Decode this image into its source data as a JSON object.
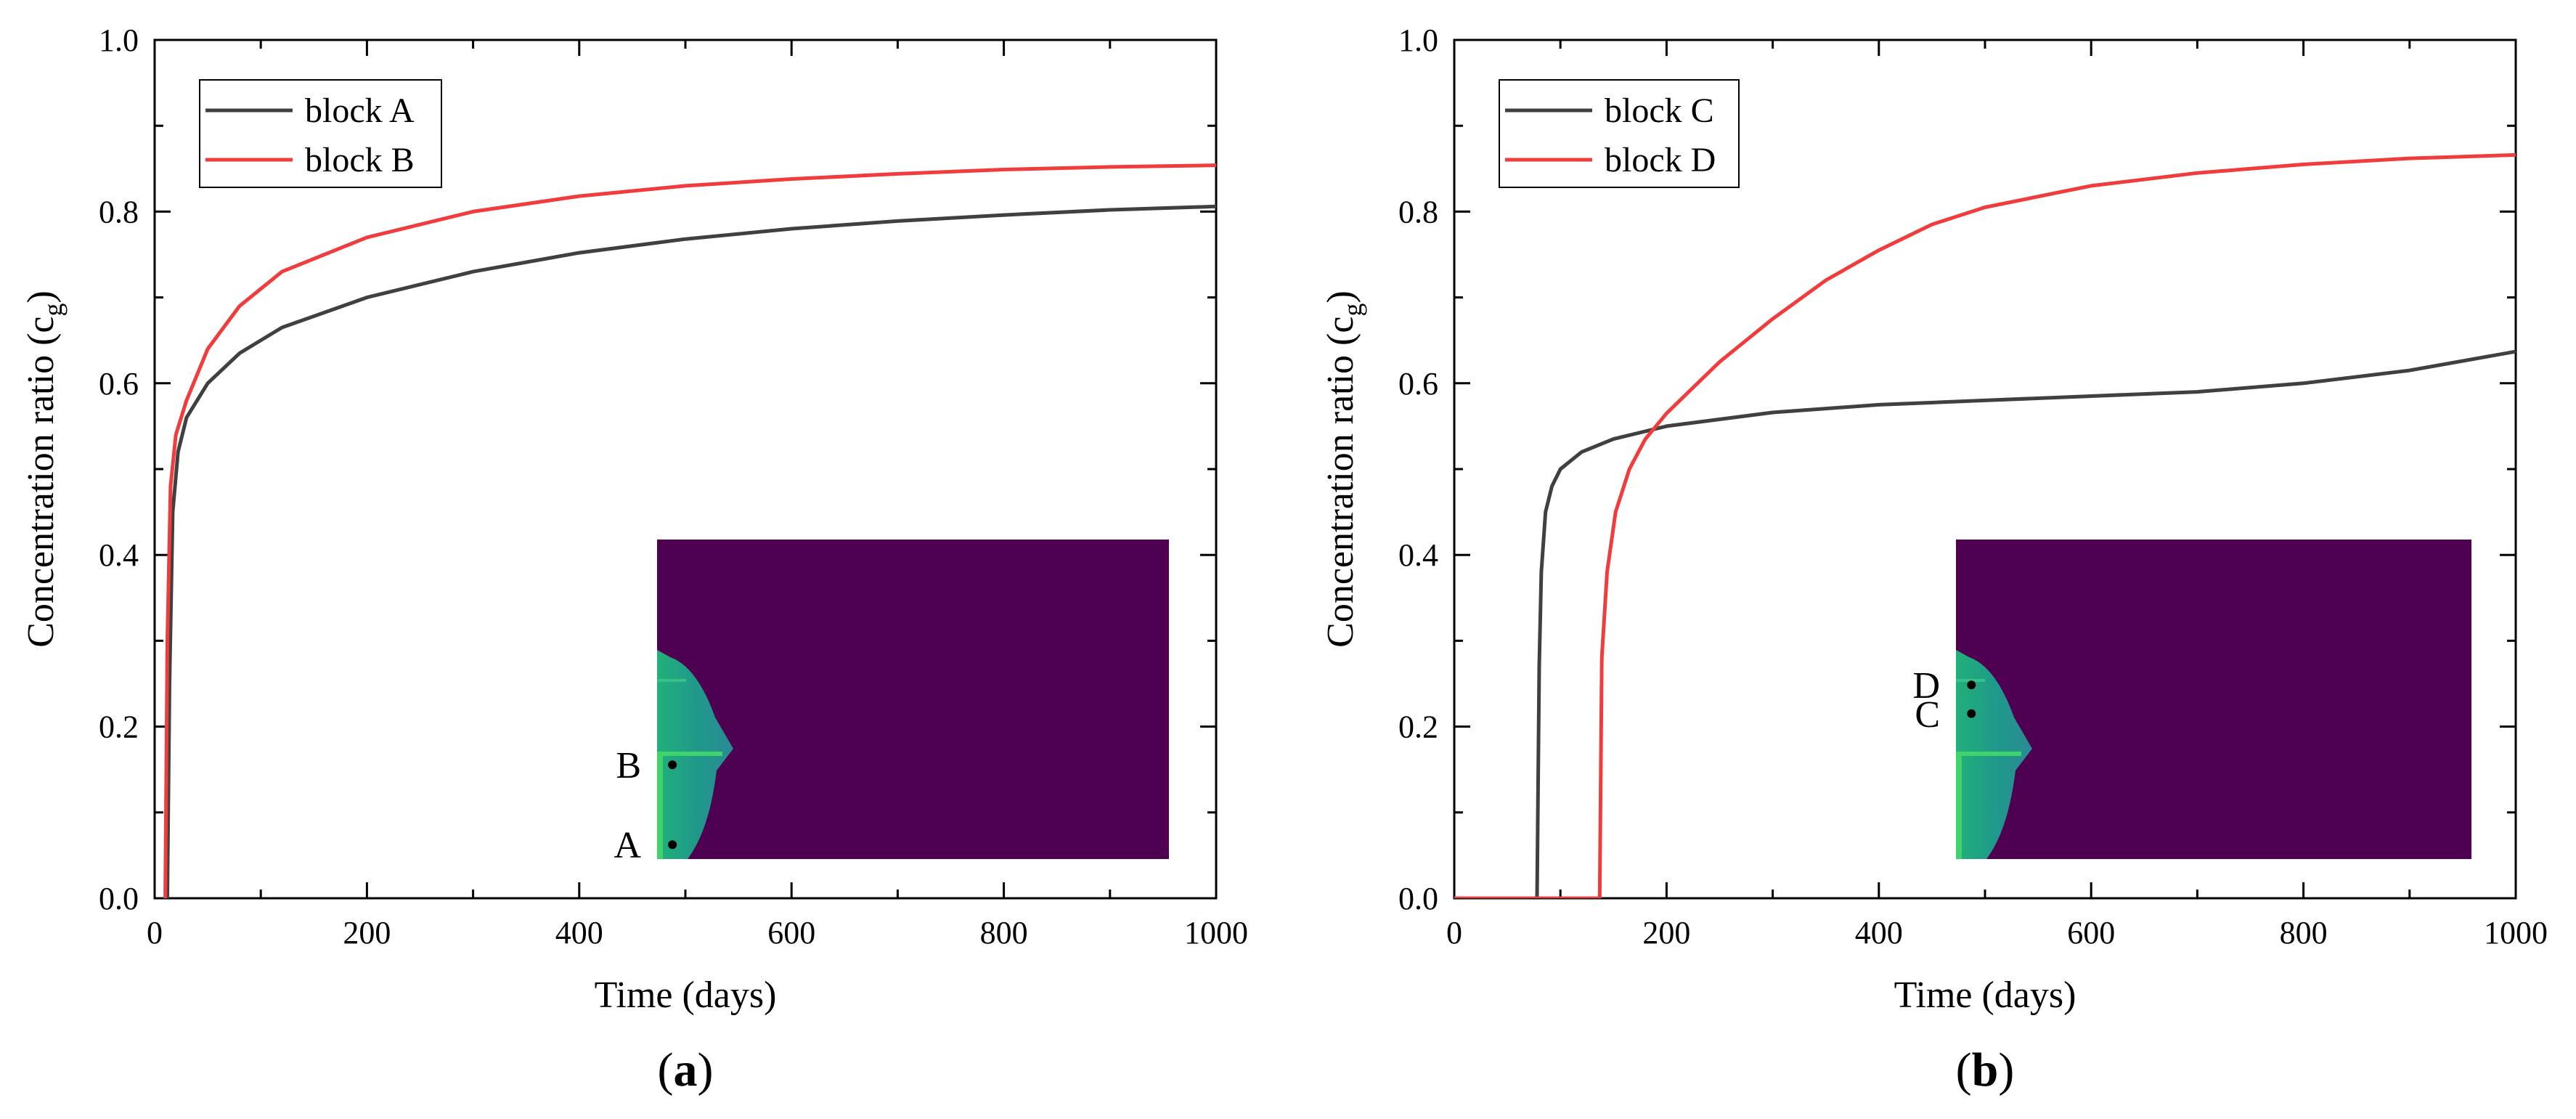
{
  "colors": {
    "series_dark": "#404040",
    "series_red": "#f03c3c",
    "inset_bg": "#4e0150",
    "inset_teal": "#1f9a8a",
    "inset_green": "#3fd36b"
  },
  "chart_data": [
    {
      "type": "line",
      "panel_label": "a",
      "xlabel": "Time (days)",
      "ylabel": "Concentration ratio (c",
      "ylabel_sub": "g",
      "ylabel_close": ")",
      "xlim": [
        0,
        1000
      ],
      "ylim": [
        0,
        1.0
      ],
      "xticks": [
        0,
        200,
        400,
        600,
        800,
        1000
      ],
      "yticks": [
        0.0,
        0.2,
        0.4,
        0.6,
        0.8,
        1.0
      ],
      "xtick_labels": [
        "0",
        "200",
        "400",
        "600",
        "800",
        "1000"
      ],
      "ytick_labels": [
        "0.0",
        "0.2",
        "0.4",
        "0.6",
        "0.8",
        "1.0"
      ],
      "legend_position": "top-left",
      "series": [
        {
          "name": "block A",
          "color": "#404040",
          "points": [
            [
              12,
              0
            ],
            [
              14,
              0.25
            ],
            [
              17,
              0.45
            ],
            [
              22,
              0.52
            ],
            [
              30,
              0.56
            ],
            [
              50,
              0.6
            ],
            [
              80,
              0.635
            ],
            [
              120,
              0.665
            ],
            [
              200,
              0.7
            ],
            [
              300,
              0.73
            ],
            [
              400,
              0.752
            ],
            [
              500,
              0.768
            ],
            [
              600,
              0.78
            ],
            [
              700,
              0.789
            ],
            [
              800,
              0.796
            ],
            [
              900,
              0.802
            ],
            [
              1000,
              0.806
            ]
          ]
        },
        {
          "name": "block B",
          "color": "#f03c3c",
          "points": [
            [
              10,
              0
            ],
            [
              12,
              0.3
            ],
            [
              15,
              0.48
            ],
            [
              20,
              0.54
            ],
            [
              30,
              0.58
            ],
            [
              50,
              0.64
            ],
            [
              80,
              0.69
            ],
            [
              120,
              0.73
            ],
            [
              200,
              0.77
            ],
            [
              300,
              0.8
            ],
            [
              400,
              0.818
            ],
            [
              500,
              0.83
            ],
            [
              600,
              0.838
            ],
            [
              700,
              0.844
            ],
            [
              800,
              0.849
            ],
            [
              900,
              0.852
            ],
            [
              1000,
              0.854
            ]
          ]
        }
      ],
      "inset": {
        "markers": [
          {
            "label": "B",
            "dx": 0.03,
            "dy": 0.705
          },
          {
            "label": "A",
            "dx": 0.03,
            "dy": 0.955
          }
        ]
      }
    },
    {
      "type": "line",
      "panel_label": "b",
      "xlabel": "Time (days)",
      "ylabel": "Concentration ratio (c",
      "ylabel_sub": "g",
      "ylabel_close": ")",
      "xlim": [
        0,
        1000
      ],
      "ylim": [
        0,
        1.0
      ],
      "xticks": [
        0,
        200,
        400,
        600,
        800,
        1000
      ],
      "yticks": [
        0.0,
        0.2,
        0.4,
        0.6,
        0.8,
        1.0
      ],
      "xtick_labels": [
        "0",
        "200",
        "400",
        "600",
        "800",
        "1000"
      ],
      "ytick_labels": [
        "0.0",
        "0.2",
        "0.4",
        "0.6",
        "0.8",
        "1.0"
      ],
      "legend_position": "top-left",
      "series": [
        {
          "name": "block C",
          "color": "#404040",
          "points": [
            [
              0,
              0
            ],
            [
              78,
              0
            ],
            [
              80,
              0.27
            ],
            [
              82,
              0.38
            ],
            [
              86,
              0.45
            ],
            [
              92,
              0.48
            ],
            [
              100,
              0.5
            ],
            [
              120,
              0.52
            ],
            [
              150,
              0.535
            ],
            [
              200,
              0.55
            ],
            [
              300,
              0.566
            ],
            [
              400,
              0.575
            ],
            [
              500,
              0.58
            ],
            [
              600,
              0.585
            ],
            [
              700,
              0.59
            ],
            [
              800,
              0.6
            ],
            [
              900,
              0.615
            ],
            [
              1000,
              0.637
            ]
          ]
        },
        {
          "name": "block D",
          "color": "#f03c3c",
          "points": [
            [
              0,
              0
            ],
            [
              137,
              0
            ],
            [
              139,
              0.28
            ],
            [
              144,
              0.38
            ],
            [
              152,
              0.45
            ],
            [
              165,
              0.5
            ],
            [
              180,
              0.535
            ],
            [
              200,
              0.565
            ],
            [
              250,
              0.625
            ],
            [
              300,
              0.675
            ],
            [
              350,
              0.72
            ],
            [
              400,
              0.755
            ],
            [
              450,
              0.785
            ],
            [
              500,
              0.805
            ],
            [
              600,
              0.83
            ],
            [
              700,
              0.845
            ],
            [
              800,
              0.855
            ],
            [
              900,
              0.862
            ],
            [
              1000,
              0.866
            ]
          ]
        }
      ],
      "inset": {
        "markers": [
          {
            "label": "D",
            "dx": 0.03,
            "dy": 0.455
          },
          {
            "label": "C",
            "dx": 0.03,
            "dy": 0.545
          }
        ]
      }
    }
  ]
}
